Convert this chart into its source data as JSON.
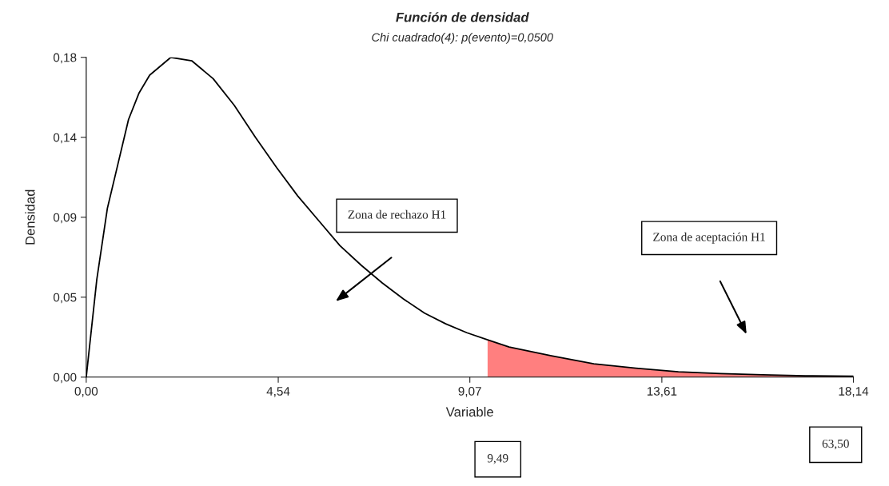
{
  "chart_data": {
    "type": "line",
    "title": "Función de densidad",
    "subtitle": "Chi cuadrado(4): p(evento)=0,0500",
    "xlabel": "Variable",
    "ylabel": "Densidad",
    "series": [
      {
        "color": "#000000",
        "x": [
          0,
          0.25,
          0.5,
          0.75,
          1,
          1.25,
          1.5,
          2,
          2.5,
          3,
          3.5,
          4,
          4.5,
          5,
          5.5,
          6,
          6.5,
          7,
          7.5,
          8,
          8.5,
          9,
          9.49,
          10,
          11,
          12,
          13,
          14,
          15,
          16,
          17,
          18.14
        ],
        "values": [
          0,
          0.055,
          0.095,
          0.12,
          0.145,
          0.16,
          0.17,
          0.18,
          0.178,
          0.168,
          0.153,
          0.135,
          0.118,
          0.102,
          0.088,
          0.074,
          0.063,
          0.053,
          0.044,
          0.036,
          0.03,
          0.025,
          0.021,
          0.017,
          0.012,
          0.0075,
          0.005,
          0.003,
          0.002,
          0.0013,
          0.0008,
          0.0005
        ]
      },
      {
        "type": "area",
        "color": "#ff7f7f",
        "x": [
          9.49,
          10,
          11,
          12,
          13,
          14,
          15,
          16,
          17,
          18.14
        ],
        "values": [
          0.021,
          0.017,
          0.012,
          0.0075,
          0.005,
          0.003,
          0.002,
          0.0013,
          0.0008,
          0.0005
        ]
      }
    ],
    "xlim": [
      0,
      18.14
    ],
    "ylim": [
      0,
      0.18
    ],
    "xticks": [
      {
        "value": 0,
        "label": "0,00"
      },
      {
        "value": 4.54,
        "label": "4,54"
      },
      {
        "value": 9.07,
        "label": "9,07"
      },
      {
        "value": 13.61,
        "label": "13,61"
      },
      {
        "value": 18.14,
        "label": "18,14"
      }
    ],
    "yticks": [
      {
        "value": 0,
        "label": "0,00"
      },
      {
        "value": 0.045,
        "label": "0,05"
      },
      {
        "value": 0.09,
        "label": "0,09"
      },
      {
        "value": 0.135,
        "label": "0,14"
      },
      {
        "value": 0.18,
        "label": "0,18"
      }
    ],
    "annotations": [
      "Zona de rechazo H1",
      "Zona de aceptación H1",
      "9,49",
      "63,50"
    ],
    "grid": false,
    "legend": false,
    "marker": "none",
    "line_style": "solid"
  }
}
